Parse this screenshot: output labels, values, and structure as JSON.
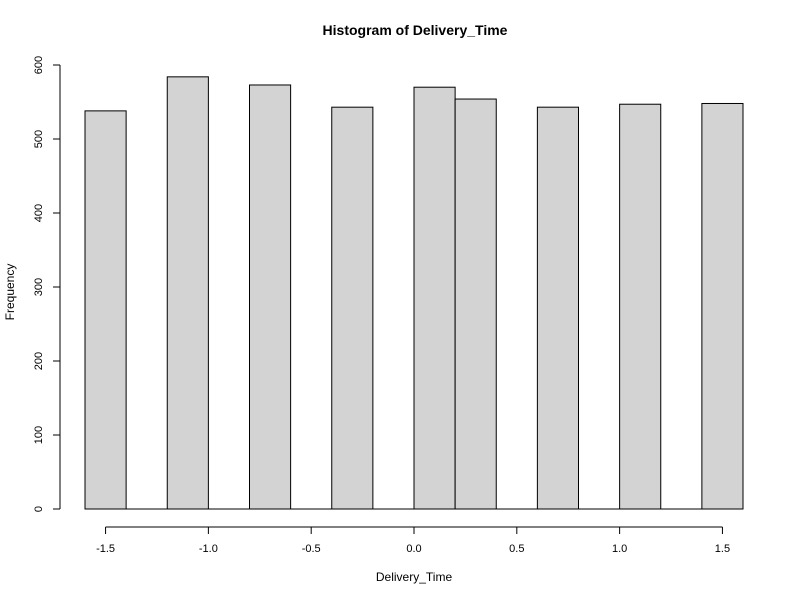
{
  "chart_data": {
    "type": "bar",
    "title": "Histogram of Delivery_Time",
    "xlabel": "Delivery_Time",
    "ylabel": "Frequency",
    "xlim": [
      -1.6,
      1.6
    ],
    "ylim": [
      0,
      600
    ],
    "x_ticks": [
      -1.5,
      -1.0,
      -0.5,
      0.0,
      0.5,
      1.0,
      1.5
    ],
    "x_tick_labels": [
      "-1.5",
      "-1.0",
      "-0.5",
      "0.0",
      "0.5",
      "1.0",
      "1.5"
    ],
    "y_ticks": [
      0,
      100,
      200,
      300,
      400,
      500,
      600
    ],
    "y_tick_labels": [
      "0",
      "100",
      "200",
      "300",
      "400",
      "500",
      "600"
    ],
    "bins": [
      {
        "x0": -1.6,
        "x1": -1.4,
        "count": 538
      },
      {
        "x0": -1.4,
        "x1": -1.2,
        "count": 0
      },
      {
        "x0": -1.2,
        "x1": -1.0,
        "count": 584
      },
      {
        "x0": -1.0,
        "x1": -0.8,
        "count": 0
      },
      {
        "x0": -0.8,
        "x1": -0.6,
        "count": 573
      },
      {
        "x0": -0.6,
        "x1": -0.4,
        "count": 0
      },
      {
        "x0": -0.4,
        "x1": -0.2,
        "count": 543
      },
      {
        "x0": -0.2,
        "x1": 0.0,
        "count": 0
      },
      {
        "x0": 0.0,
        "x1": 0.2,
        "count": 570
      },
      {
        "x0": 0.2,
        "x1": 0.4,
        "count": 554
      },
      {
        "x0": 0.4,
        "x1": 0.6,
        "count": 0
      },
      {
        "x0": 0.6,
        "x1": 0.8,
        "count": 543
      },
      {
        "x0": 0.8,
        "x1": 1.0,
        "count": 0
      },
      {
        "x0": 1.0,
        "x1": 1.2,
        "count": 547
      },
      {
        "x0": 1.2,
        "x1": 1.4,
        "count": 0
      },
      {
        "x0": 1.4,
        "x1": 1.6,
        "count": 548
      }
    ],
    "bar_fill": "#d3d3d3",
    "bar_stroke": "#000000",
    "grid": false,
    "legend": "none"
  }
}
